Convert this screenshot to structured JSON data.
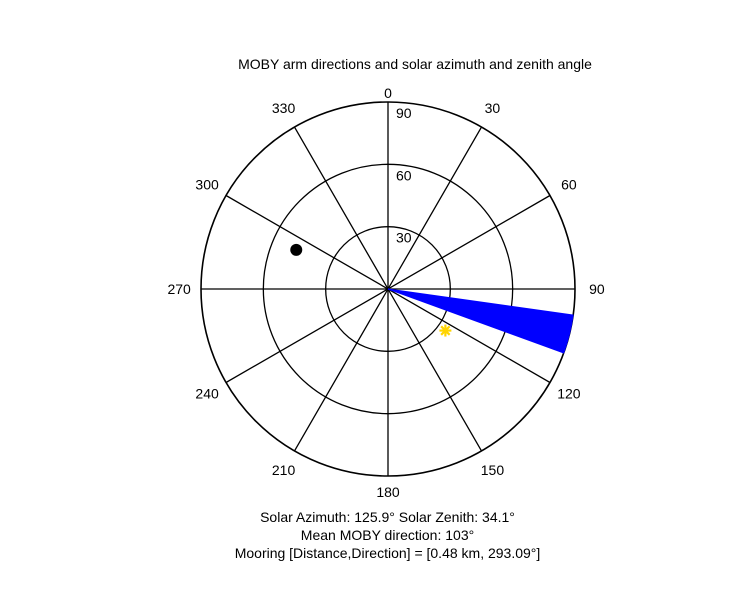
{
  "chart_data": {
    "type": "polar",
    "title": "MOBY arm directions and solar azimuth and zenith angle",
    "angle_labels": [
      "0",
      "30",
      "60",
      "90",
      "120",
      "150",
      "180",
      "210",
      "240",
      "270",
      "300",
      "330"
    ],
    "radial_labels": [
      "30",
      "60",
      "90"
    ],
    "radial_max": 90,
    "rings": [
      30,
      60,
      90
    ],
    "spokes_every_deg": 30,
    "arm_sector": {
      "from_deg": 98,
      "to_deg": 110,
      "inner_radius": 0,
      "outer_radius": 90,
      "color": "#0000ff"
    },
    "arm_line": {
      "direction_deg": 103,
      "color": "#0000ff"
    },
    "sun": {
      "azimuth": 125.9,
      "zenith": 34.1,
      "color": "#ffd400"
    },
    "mooring": {
      "direction_deg": 293.09,
      "radius": 48,
      "color": "#000000"
    },
    "caption": {
      "line1": "Solar Azimuth: 125.9°   Solar Zenith: 34.1°",
      "line2": "Mean MOBY direction: 103°",
      "line3": "Mooring [Distance,Direction] = [0.48 km, 293.09°]"
    }
  }
}
